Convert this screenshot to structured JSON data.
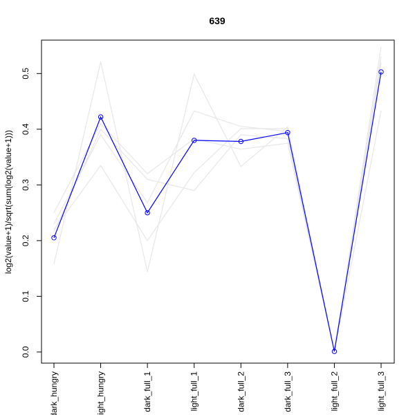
{
  "chart_data": {
    "type": "line",
    "title": "639",
    "ylabel": "log2(value+1)/sqrt(sum(log2(value+1)))",
    "xlabel": "",
    "categories": [
      "dark_hungry",
      "light_hungry",
      "dark_full_1",
      "light_full_1",
      "dark_full_2",
      "dark_full_3",
      "light_full_2",
      "light_full_3"
    ],
    "category_labels_shown": [
      "dark_hungry",
      "ight_hungry",
      "dark_full_1",
      "light_full_1",
      "dark_full_2",
      "dark_full_3",
      "light_full_2",
      "light_full_3"
    ],
    "ylim": [
      -0.02,
      0.56
    ],
    "yticks": [
      0.0,
      0.1,
      0.2,
      0.3,
      0.4,
      0.5
    ],
    "ytick_labels": [
      "0.0",
      "0.1",
      "0.2",
      "0.3",
      "0.4",
      "0.5"
    ],
    "grid": false,
    "colors": {
      "highlight": "#0000ff",
      "background_series": "#e6e6e6",
      "axis": "#000000"
    },
    "highlight_series": {
      "values": [
        0.205,
        0.422,
        0.25,
        0.38,
        0.378,
        0.394,
        0.001,
        0.503
      ],
      "marker": "open-circle"
    },
    "background_series": [
      {
        "values": [
          0.158,
          0.521,
          0.144,
          0.499,
          0.333,
          0.404,
          0.001,
          0.433
        ]
      },
      {
        "values": [
          0.22,
          0.335,
          0.2,
          0.322,
          0.401,
          0.401,
          0.001,
          0.548
        ]
      },
      {
        "values": [
          0.25,
          0.41,
          0.32,
          0.383,
          0.364,
          0.375,
          0.001,
          0.531
        ]
      },
      {
        "values": [
          0.216,
          0.4,
          0.31,
          0.29,
          0.39,
          0.383,
          0.001,
          0.52
        ]
      },
      {
        "values": [
          0.23,
          0.39,
          0.268,
          0.433,
          0.405,
          0.396,
          0.001,
          0.505
        ]
      }
    ]
  }
}
